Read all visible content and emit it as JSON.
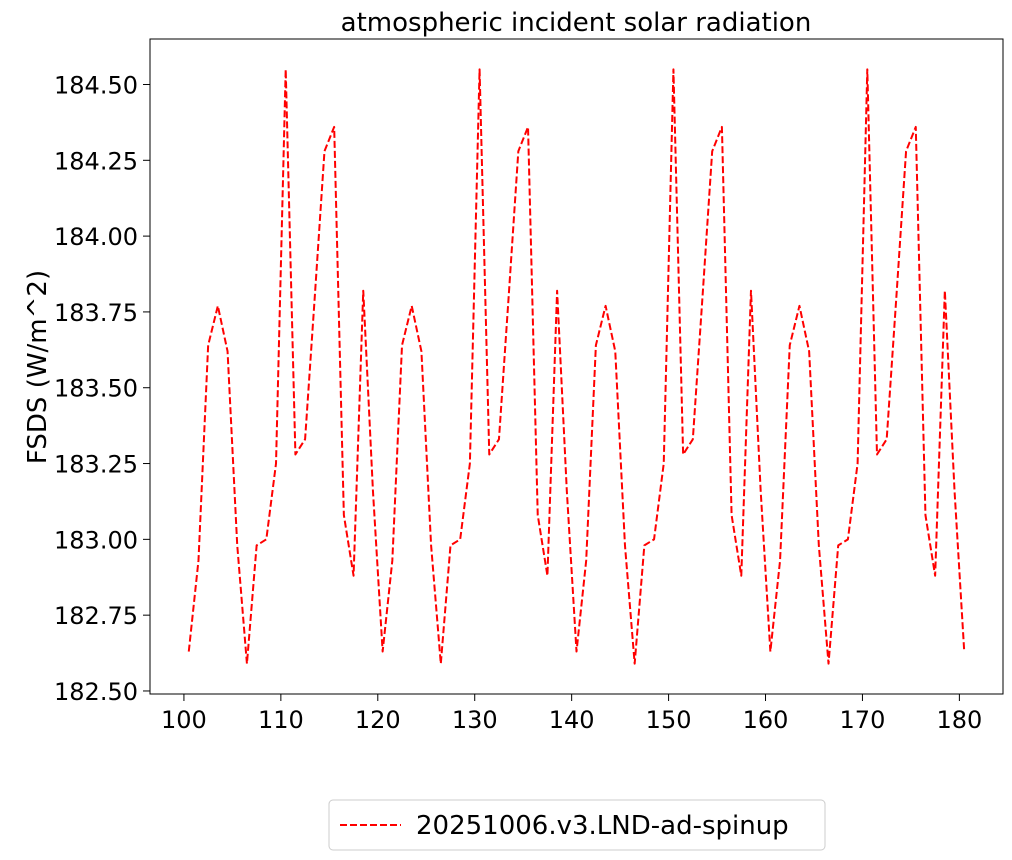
{
  "chart_data": {
    "type": "line",
    "title": "atmospheric incident solar radiation",
    "xlabel": "",
    "ylabel": "FSDS (W/m^2)",
    "xlim": [
      96.5,
      184.5
    ],
    "ylim": [
      182.49,
      184.65
    ],
    "xticks": [
      100,
      110,
      120,
      130,
      140,
      150,
      160,
      170,
      180
    ],
    "xtick_labels": [
      "100",
      "110",
      "120",
      "130",
      "140",
      "150",
      "160",
      "170",
      "180"
    ],
    "yticks": [
      182.5,
      182.75,
      183.0,
      183.25,
      183.5,
      183.75,
      184.0,
      184.25,
      184.5
    ],
    "ytick_labels": [
      "182.50",
      "182.75",
      "183.00",
      "183.25",
      "183.50",
      "183.75",
      "184.00",
      "184.25",
      "184.50"
    ],
    "grid": false,
    "legend_position": "bottom-center-outside",
    "series": [
      {
        "name": "20251006.v3.LND-ad-spinup",
        "color": "#ff0000",
        "line_style": "dashed",
        "x": [
          100.5,
          101.5,
          102.5,
          103.5,
          104.5,
          105.5,
          106.5,
          107.5,
          108.5,
          109.5,
          110.5,
          111.5,
          112.5,
          113.5,
          114.5,
          115.5,
          116.5,
          117.5,
          118.5,
          119.5,
          120.5,
          121.5,
          122.5,
          123.5,
          124.5,
          125.5,
          126.5,
          127.5,
          128.5,
          129.5,
          130.5,
          131.5,
          132.5,
          133.5,
          134.5,
          135.5,
          136.5,
          137.5,
          138.5,
          139.5,
          140.5,
          141.5,
          142.5,
          143.5,
          144.5,
          145.5,
          146.5,
          147.5,
          148.5,
          149.5,
          150.5,
          151.5,
          152.5,
          153.5,
          154.5,
          155.5,
          156.5,
          157.5,
          158.5,
          159.5,
          160.5,
          161.5,
          162.5,
          163.5,
          164.5,
          165.5,
          166.5,
          167.5,
          168.5,
          169.5,
          170.5,
          171.5,
          172.5,
          173.5,
          174.5,
          175.5,
          176.5,
          177.5,
          178.5,
          179.5,
          180.5
        ],
        "values": [
          182.63,
          182.93,
          183.64,
          183.77,
          183.62,
          182.98,
          182.59,
          182.98,
          183.0,
          183.25,
          184.55,
          183.28,
          183.33,
          183.8,
          184.28,
          184.36,
          183.08,
          182.88,
          183.82,
          183.16,
          182.63,
          182.93,
          183.64,
          183.77,
          183.62,
          182.98,
          182.59,
          182.98,
          183.0,
          183.25,
          184.55,
          183.28,
          183.33,
          183.8,
          184.28,
          184.36,
          183.08,
          182.88,
          183.82,
          183.16,
          182.63,
          182.93,
          183.64,
          183.77,
          183.62,
          182.98,
          182.59,
          182.98,
          183.0,
          183.25,
          184.55,
          183.28,
          183.33,
          183.8,
          184.28,
          184.36,
          183.08,
          182.88,
          183.82,
          183.16,
          182.63,
          182.93,
          183.64,
          183.77,
          183.62,
          182.98,
          182.59,
          182.98,
          183.0,
          183.25,
          184.55,
          183.28,
          183.33,
          183.8,
          184.28,
          184.36,
          183.08,
          182.88,
          183.82,
          183.16,
          182.63
        ]
      }
    ]
  }
}
